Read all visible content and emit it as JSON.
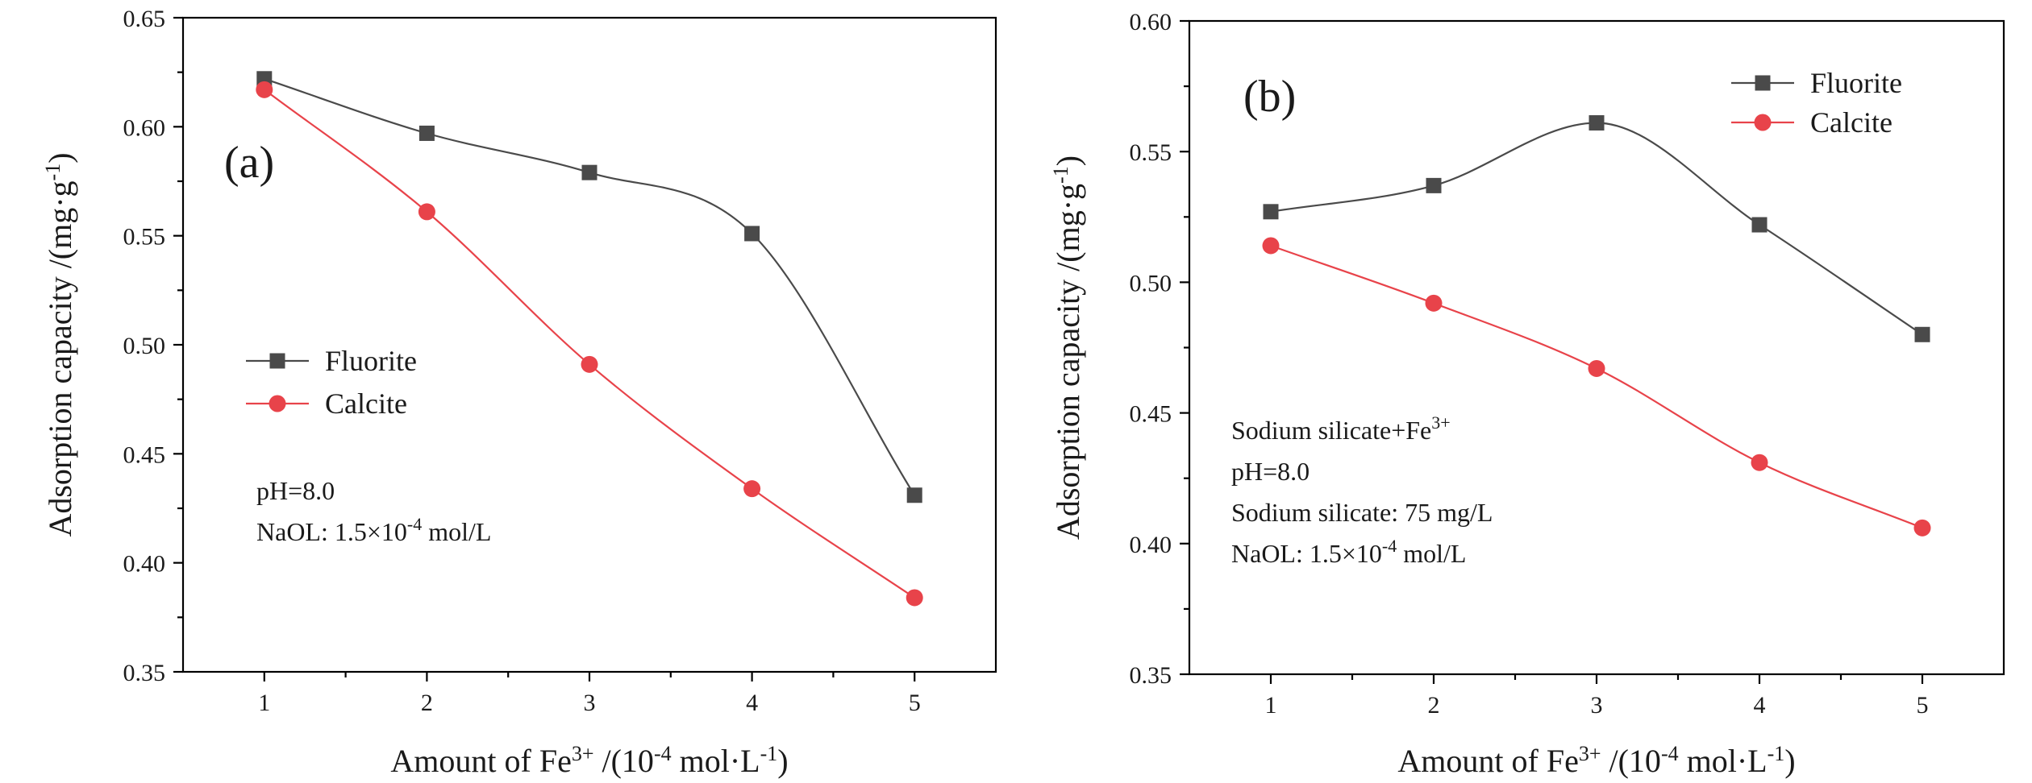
{
  "chart_data": [
    {
      "type": "line",
      "panel_label": "(a)",
      "xlabel_main": "Amount of Fe",
      "xlabel_sup": "3+",
      "xlabel_mid": " /(10",
      "xlabel_sup2": "-4",
      "xlabel_mid2": " mol·L",
      "xlabel_sup3": "-1",
      "xlabel_end": ")",
      "ylabel_main": "Adsorption capacity /(mg·g",
      "ylabel_sup": "-1",
      "ylabel_end": ")",
      "xlim": [
        0.5,
        5.5
      ],
      "ylim": [
        0.35,
        0.65
      ],
      "x_ticks": [
        1,
        2,
        3,
        4,
        5
      ],
      "y_ticks": [
        "0.35",
        "0.40",
        "0.45",
        "0.50",
        "0.55",
        "0.60",
        "0.65"
      ],
      "legend_position": "center-left",
      "annotations": [
        {
          "text": "pH=8.0"
        },
        {
          "text": "NaOL: 1.5×10",
          "sup": "-4",
          "tail": " mol/L"
        }
      ],
      "series": [
        {
          "name": "Fluorite",
          "marker": "square",
          "color": "#4a4a4a",
          "x": [
            1,
            2,
            3,
            4,
            5
          ],
          "values": [
            0.622,
            0.597,
            0.579,
            0.551,
            0.431
          ]
        },
        {
          "name": "Calcite",
          "marker": "circle",
          "color": "#e8434a",
          "x": [
            1,
            2,
            3,
            4,
            5
          ],
          "values": [
            0.617,
            0.561,
            0.491,
            0.434,
            0.384
          ]
        }
      ]
    },
    {
      "type": "line",
      "panel_label": "(b)",
      "xlabel_main": "Amount of Fe",
      "xlabel_sup": "3+",
      "xlabel_mid": " /(10",
      "xlabel_sup2": "-4",
      "xlabel_mid2": " mol·L",
      "xlabel_sup3": "-1",
      "xlabel_end": ")",
      "ylabel_main": "Adsorption capacity /(mg·g",
      "ylabel_sup": "-1",
      "ylabel_end": ")",
      "xlim": [
        0.5,
        5.5
      ],
      "ylim": [
        0.35,
        0.6
      ],
      "x_ticks": [
        1,
        2,
        3,
        4,
        5
      ],
      "y_ticks": [
        "0.35",
        "0.40",
        "0.45",
        "0.50",
        "0.55",
        "0.60"
      ],
      "legend_position": "top-right",
      "annotations": [
        {
          "text": "Sodium silicate+Fe",
          "sup": "3+",
          "tail": ""
        },
        {
          "text": "pH=8.0"
        },
        {
          "text": "Sodium silicate: 75 mg/L"
        },
        {
          "text": "NaOL: 1.5×10",
          "sup": "-4",
          "tail": " mol/L"
        }
      ],
      "series": [
        {
          "name": "Fluorite",
          "marker": "square",
          "color": "#4a4a4a",
          "x": [
            1,
            2,
            3,
            4,
            5
          ],
          "values": [
            0.527,
            0.537,
            0.561,
            0.522,
            0.48
          ]
        },
        {
          "name": "Calcite",
          "marker": "circle",
          "color": "#e8434a",
          "x": [
            1,
            2,
            3,
            4,
            5
          ],
          "values": [
            0.514,
            0.492,
            0.467,
            0.431,
            0.406
          ]
        }
      ]
    }
  ]
}
